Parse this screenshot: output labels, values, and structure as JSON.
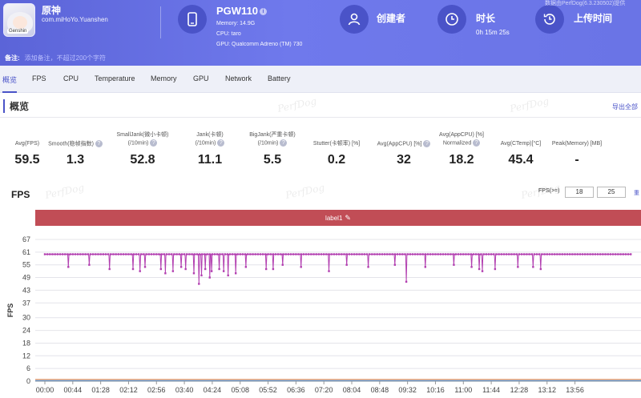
{
  "header": {
    "app_name": "原神",
    "app_package": "com.miHoYo.Yuanshen",
    "app_icon_tag": "Genshin",
    "device": {
      "model": "PGW110",
      "memory": "Memory: 14.9G",
      "cpu": "CPU: taro",
      "gpu": "GPU: Qualcomm Adreno (TM) 730"
    },
    "creator_label": "创建者",
    "duration_label": "时长",
    "duration_value": "0h 15m 25s",
    "upload_label": "上传时间",
    "corner_text": "数据由PerfDog(6.3.230502)提供",
    "note_label": "备注:",
    "note_placeholder": "添加备注，不超过200个字符"
  },
  "tabs": [
    "概览",
    "FPS",
    "CPU",
    "Temperature",
    "Memory",
    "GPU",
    "Network",
    "Battery"
  ],
  "overview": {
    "title": "概览",
    "export": "导出全部",
    "watermark": "PerfDog",
    "metrics": [
      {
        "label": "Avg(FPS)",
        "value": "59.5",
        "help": false
      },
      {
        "label": "Smooth(稳帧指数)",
        "value": "1.3",
        "help": true
      },
      {
        "label": "SmallJank(微小卡顿)",
        "label2": "(/10min)",
        "value": "52.8",
        "help": true
      },
      {
        "label": "Jank(卡顿)",
        "label2": "(/10min)",
        "value": "11.1",
        "help": true
      },
      {
        "label": "BigJank(严重卡顿)",
        "label2": "(/10min)",
        "value": "5.5",
        "help": true
      },
      {
        "label": "Stutter(卡顿率) [%]",
        "value": "0.2",
        "help": false
      },
      {
        "label": "Avg(AppCPU) [%]",
        "value": "32",
        "help": true
      },
      {
        "label": "Avg(AppCPU) [%]",
        "label2": "Normalized",
        "value": "18.2",
        "help": true
      },
      {
        "label": "Avg(CTemp)[°C]",
        "value": "45.4",
        "help": false
      },
      {
        "label": "Peak(Memory) [MB]",
        "value": "-",
        "help": false
      }
    ]
  },
  "fps_section": {
    "title": "FPS",
    "threshold_label": "FPS(>=)",
    "threshold_a": "18",
    "threshold_b": "25",
    "reset": "重",
    "label_bar": "label1",
    "pen_icon": "✎"
  },
  "chart_data": {
    "type": "line",
    "ylabel": "FPS",
    "yticks": [
      0,
      6,
      12,
      18,
      24,
      30,
      37,
      43,
      49,
      55,
      61,
      67
    ],
    "ylim": [
      0,
      67
    ],
    "xticks": [
      "00:00",
      "00:44",
      "01:28",
      "02:12",
      "02:56",
      "03:40",
      "04:24",
      "05:08",
      "05:52",
      "06:36",
      "07:20",
      "08:04",
      "08:48",
      "09:32",
      "10:16",
      "11:00",
      "11:44",
      "12:28",
      "13:12",
      "13:56"
    ],
    "x_range_sec": [
      0,
      925
    ],
    "grid": true,
    "series": [
      {
        "color": "#b23fb0",
        "baseline": 60,
        "dips": [
          {
            "t": 37,
            "v": 54
          },
          {
            "t": 70,
            "v": 55
          },
          {
            "t": 102,
            "v": 53
          },
          {
            "t": 139,
            "v": 53
          },
          {
            "t": 150,
            "v": 52
          },
          {
            "t": 158,
            "v": 54
          },
          {
            "t": 183,
            "v": 53
          },
          {
            "t": 190,
            "v": 51
          },
          {
            "t": 202,
            "v": 52
          },
          {
            "t": 215,
            "v": 54
          },
          {
            "t": 222,
            "v": 53
          },
          {
            "t": 235,
            "v": 51
          },
          {
            "t": 243,
            "v": 46
          },
          {
            "t": 247,
            "v": 50
          },
          {
            "t": 253,
            "v": 53
          },
          {
            "t": 260,
            "v": 49
          },
          {
            "t": 263,
            "v": 52
          },
          {
            "t": 275,
            "v": 53
          },
          {
            "t": 282,
            "v": 52
          },
          {
            "t": 289,
            "v": 50
          },
          {
            "t": 301,
            "v": 51
          },
          {
            "t": 317,
            "v": 54
          },
          {
            "t": 349,
            "v": 53
          },
          {
            "t": 360,
            "v": 53
          },
          {
            "t": 375,
            "v": 55
          },
          {
            "t": 404,
            "v": 54
          },
          {
            "t": 448,
            "v": 52
          },
          {
            "t": 476,
            "v": 55
          },
          {
            "t": 510,
            "v": 54
          },
          {
            "t": 552,
            "v": 55
          },
          {
            "t": 570,
            "v": 47
          },
          {
            "t": 600,
            "v": 54
          },
          {
            "t": 645,
            "v": 55
          },
          {
            "t": 673,
            "v": 54
          },
          {
            "t": 685,
            "v": 53
          },
          {
            "t": 690,
            "v": 52
          },
          {
            "t": 710,
            "v": 53
          },
          {
            "t": 746,
            "v": 54
          },
          {
            "t": 770,
            "v": 54
          },
          {
            "t": 782,
            "v": 53
          }
        ]
      },
      {
        "color": "#e07a3a",
        "baseline": 0.8
      },
      {
        "color": "#4d8fd8",
        "baseline": 0.3
      }
    ]
  }
}
